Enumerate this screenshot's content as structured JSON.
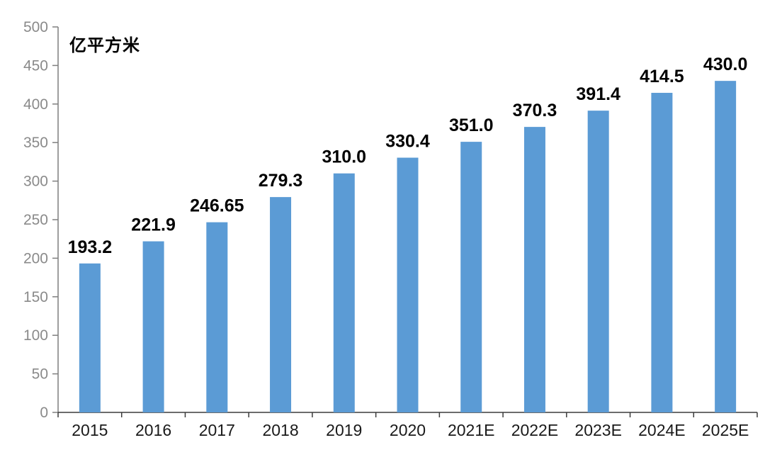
{
  "chart_data": {
    "type": "bar",
    "title": "",
    "unit_label": "亿平方米",
    "categories": [
      "2015",
      "2016",
      "2017",
      "2018",
      "2019",
      "2020",
      "2021E",
      "2022E",
      "2023E",
      "2024E",
      "2025E"
    ],
    "values": [
      193.2,
      221.9,
      246.65,
      279.3,
      310.0,
      330.4,
      351.0,
      370.3,
      391.4,
      414.5,
      430.0
    ],
    "value_labels": [
      "193.2",
      "221.9",
      "246.65",
      "279.3",
      "310.0",
      "330.4",
      "351.0",
      "370.3",
      "391.4",
      "414.5",
      "430.0"
    ],
    "xlabel": "",
    "ylabel": "",
    "ylim": [
      0,
      500
    ],
    "yticks": [
      0,
      50,
      100,
      150,
      200,
      250,
      300,
      350,
      400,
      450,
      500
    ],
    "grid": "off",
    "legend": "none",
    "colors": {
      "bar": "#5B9BD5",
      "value_label": "#000000",
      "x_axis_line": "#3B3B3B",
      "x_tick_label": "#1A1A1A",
      "y_axis_line": "#7F7F7F",
      "y_tick_label": "#8A8A8A"
    }
  }
}
